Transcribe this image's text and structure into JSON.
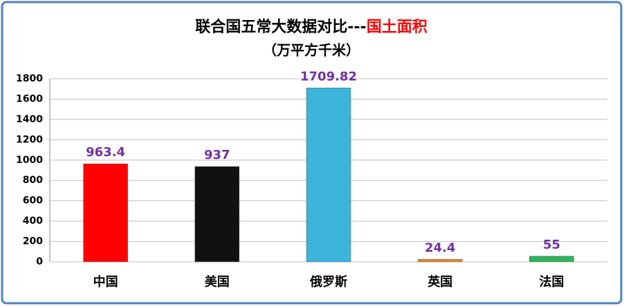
{
  "chart_data": {
    "type": "bar",
    "title": "联合国五常大数据对比---",
    "title_highlight": "国土面积",
    "subtitle": "（万平方千米）",
    "categories": [
      "中国",
      "美国",
      "俄罗斯",
      "英国",
      "法国"
    ],
    "values": [
      963.4,
      937,
      1709.82,
      24.4,
      55
    ],
    "colors": [
      "#ff0000",
      "#111111",
      "#3cb4dc",
      "#e58a2e",
      "#2db35a"
    ],
    "title_color": "#000000",
    "highlight_color": "#ff0000",
    "ylim": [
      0,
      1800
    ],
    "yticks": [
      0,
      200,
      400,
      600,
      800,
      1000,
      1200,
      1400,
      1600,
      1800
    ],
    "grid": true
  }
}
